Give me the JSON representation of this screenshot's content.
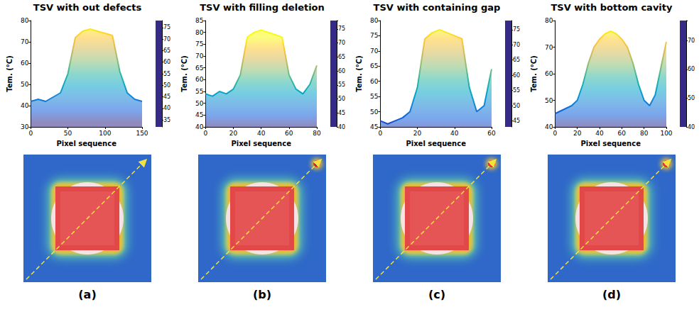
{
  "chart_data": [
    {
      "type": "line",
      "title": "TSV with out defects",
      "label": "(a)",
      "x_label": "Pixel sequence",
      "y_label": "Tem. (°C)",
      "x": [
        0,
        10,
        20,
        30,
        40,
        50,
        60,
        70,
        80,
        90,
        100,
        110,
        120,
        130,
        140,
        150
      ],
      "values": [
        42,
        43,
        42,
        44,
        46,
        55,
        72,
        75,
        76,
        75,
        74,
        73,
        56,
        46,
        43,
        42
      ],
      "xlim": [
        0,
        150
      ],
      "xticks": [
        0,
        50,
        100,
        150
      ],
      "ylim": [
        30,
        80
      ],
      "yticks": [
        30,
        40,
        50,
        60,
        70,
        80
      ],
      "grid": false,
      "colorbar": {
        "range": [
          32,
          78
        ],
        "ticks": [
          35,
          40,
          45,
          50,
          55,
          60,
          65,
          70,
          75
        ]
      }
    },
    {
      "type": "line",
      "title": "TSV with filling deletion",
      "label": "(b)",
      "x_label": "Pixel sequence",
      "y_label": "Tem. (°C)",
      "x": [
        0,
        5,
        10,
        15,
        20,
        25,
        30,
        35,
        40,
        45,
        50,
        55,
        60,
        65,
        70,
        75,
        80
      ],
      "values": [
        54,
        53,
        55,
        54,
        56,
        62,
        78,
        80,
        81,
        80,
        79,
        78,
        62,
        56,
        54,
        58,
        66
      ],
      "xlim": [
        0,
        80
      ],
      "xticks": [
        0,
        20,
        40,
        60,
        80
      ],
      "ylim": [
        40,
        85
      ],
      "yticks": [
        40,
        45,
        50,
        55,
        60,
        65,
        70,
        75,
        80,
        85
      ],
      "grid": false,
      "colorbar": {
        "range": [
          40,
          78
        ],
        "ticks": [
          40,
          45,
          50,
          55,
          60,
          65,
          70,
          75
        ]
      }
    },
    {
      "type": "line",
      "title": "TSV with containing gap",
      "label": "(c)",
      "x_label": "Pixel sequence",
      "y_label": "Tem. (°C)",
      "x": [
        0,
        4,
        8,
        12,
        16,
        20,
        24,
        28,
        32,
        36,
        40,
        44,
        48,
        52,
        56,
        60
      ],
      "values": [
        47,
        46,
        47,
        48,
        50,
        58,
        74,
        76,
        77,
        76,
        75,
        74,
        58,
        50,
        52,
        64
      ],
      "xlim": [
        0,
        60
      ],
      "xticks": [
        0,
        20,
        40,
        60
      ],
      "ylim": [
        45,
        80
      ],
      "yticks": [
        45,
        50,
        55,
        60,
        65,
        70,
        75,
        80
      ],
      "grid": false,
      "colorbar": {
        "range": [
          43,
          78
        ],
        "ticks": [
          45,
          50,
          55,
          60,
          65,
          70,
          75
        ]
      }
    },
    {
      "type": "line",
      "title": "TSV with bottom cavity",
      "label": "(d)",
      "x_label": "Pixel sequence",
      "y_label": "Tem. (°C)",
      "x": [
        0,
        5,
        10,
        15,
        20,
        25,
        30,
        35,
        40,
        45,
        50,
        55,
        60,
        65,
        70,
        75,
        80,
        85,
        90,
        95,
        100
      ],
      "values": [
        45,
        46,
        47,
        48,
        50,
        56,
        64,
        70,
        73,
        75,
        76,
        75,
        73,
        70,
        64,
        56,
        50,
        48,
        52,
        62,
        72
      ],
      "xlim": [
        0,
        100
      ],
      "xticks": [
        0,
        20,
        40,
        60,
        80,
        100
      ],
      "ylim": [
        40,
        80
      ],
      "yticks": [
        40,
        50,
        60,
        70,
        80
      ],
      "grid": false,
      "colorbar": {
        "range": [
          40,
          77
        ],
        "ticks": [
          40,
          50,
          60,
          70
        ]
      }
    }
  ]
}
